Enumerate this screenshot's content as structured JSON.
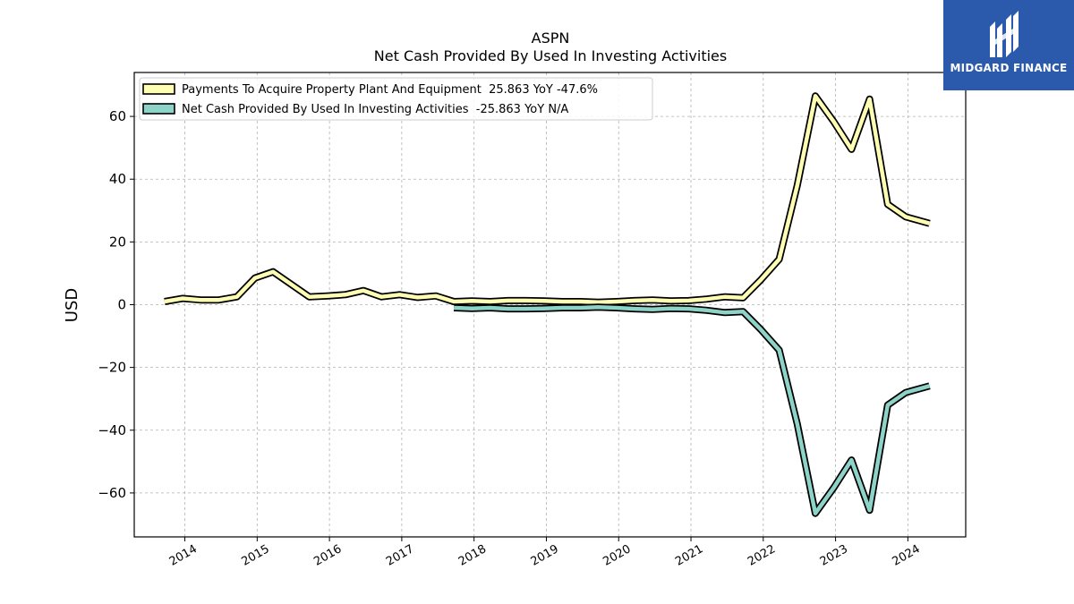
{
  "brand": {
    "name": "MIDGARD FINANCE",
    "bg": "#2b5aad",
    "icon": "midgard-logo-icon"
  },
  "chart_data": {
    "type": "line",
    "title": "ASPN",
    "subtitle": "Net Cash Provided By Used In Investing Activities",
    "ylabel": "USD",
    "xlabel": "",
    "ylim": [
      -74,
      74
    ],
    "xlim": [
      2013.3,
      2024.8
    ],
    "yticks": [
      -60,
      -40,
      -20,
      0,
      20,
      40,
      60
    ],
    "xticks": [
      2014,
      2015,
      2016,
      2017,
      2018,
      2019,
      2020,
      2021,
      2022,
      2023,
      2024
    ],
    "grid": true,
    "legend_position": "top-left",
    "series": [
      {
        "name": "Payments To Acquire Property Plant And Equipment  25.863 YoY -47.6%",
        "color": "#ffffb3",
        "x": [
          2013.72,
          2013.97,
          2014.22,
          2014.47,
          2014.72,
          2014.97,
          2015.22,
          2015.47,
          2015.72,
          2015.97,
          2016.22,
          2016.47,
          2016.72,
          2016.97,
          2017.22,
          2017.47,
          2017.72,
          2017.97,
          2018.22,
          2018.47,
          2018.72,
          2018.97,
          2019.22,
          2019.47,
          2019.72,
          2019.97,
          2020.22,
          2020.47,
          2020.72,
          2020.97,
          2021.22,
          2021.47,
          2021.72,
          2021.97,
          2022.22,
          2022.47,
          2022.72,
          2022.97,
          2023.22,
          2023.47,
          2023.72,
          2023.97,
          2024.3
        ],
        "values": [
          1.0,
          2.0,
          1.5,
          1.5,
          2.5,
          8.5,
          10.5,
          6.5,
          2.5,
          2.8,
          3.2,
          4.5,
          2.5,
          3.2,
          2.3,
          2.8,
          1.0,
          1.2,
          1.0,
          1.3,
          1.3,
          1.2,
          1.0,
          1.0,
          0.8,
          1.0,
          1.3,
          1.5,
          1.2,
          1.3,
          1.8,
          2.5,
          2.2,
          8.0,
          14.5,
          38.0,
          66.5,
          58.5,
          49.5,
          65.5,
          32.0,
          28.0,
          25.9
        ]
      },
      {
        "name": "Net Cash Provided By Used In Investing Activities  -25.863 YoY N/A",
        "color": "#8dd3c7",
        "x": [
          2017.72,
          2017.97,
          2018.22,
          2018.47,
          2018.72,
          2018.97,
          2019.22,
          2019.47,
          2019.72,
          2019.97,
          2020.22,
          2020.47,
          2020.72,
          2020.97,
          2021.22,
          2021.47,
          2021.72,
          2021.97,
          2022.22,
          2022.47,
          2022.72,
          2022.97,
          2023.22,
          2023.47,
          2023.72,
          2023.97,
          2024.3
        ],
        "values": [
          -1.0,
          -1.2,
          -1.0,
          -1.3,
          -1.3,
          -1.2,
          -1.0,
          -1.0,
          -0.8,
          -1.0,
          -1.3,
          -1.5,
          -1.2,
          -1.3,
          -1.8,
          -2.5,
          -2.2,
          -8.0,
          -14.5,
          -38.0,
          -66.5,
          -58.5,
          -49.5,
          -65.5,
          -32.0,
          -28.0,
          -25.9
        ]
      }
    ]
  }
}
